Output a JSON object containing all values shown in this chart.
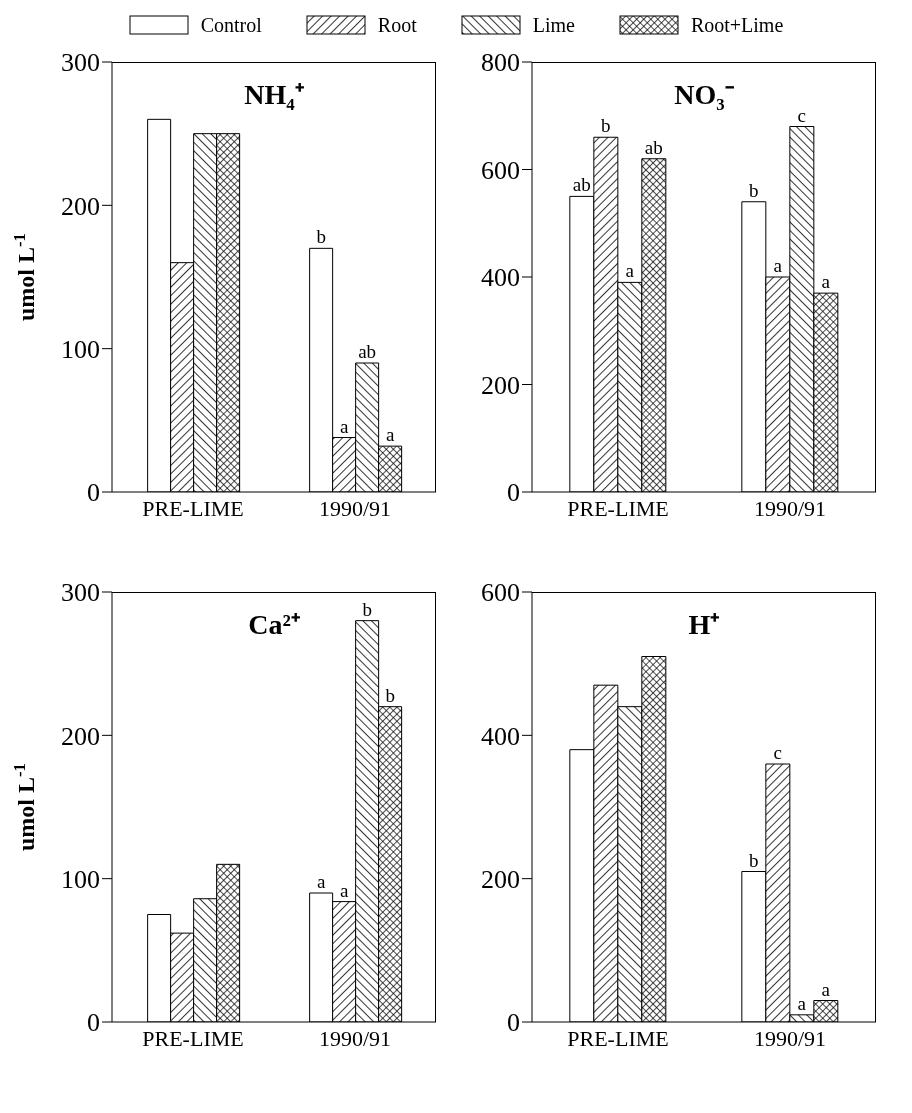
{
  "chart_data": [
    {
      "type": "bar",
      "title": "NH₄⁺",
      "ylabel": "umol L$^{-1}$",
      "categories": [
        "PRE-LIME",
        "1990/91"
      ],
      "ylim": [
        0,
        300
      ],
      "yticks": [
        0,
        100,
        200,
        300
      ],
      "grid": false,
      "legend": "top",
      "series": [
        {
          "name": "Control",
          "color": "#ffffff",
          "values": [
            260,
            170
          ],
          "value_labels": [
            null,
            "b"
          ]
        },
        {
          "name": "Root",
          "color": "#000000",
          "values": [
            160,
            38
          ],
          "value_labels": [
            null,
            "a"
          ]
        },
        {
          "name": "Lime",
          "color": "#000000",
          "values": [
            250,
            90
          ],
          "value_labels": [
            null,
            "ab"
          ]
        },
        {
          "name": "Root+Lime",
          "color": "#000000",
          "values": [
            250,
            32
          ],
          "value_labels": [
            null,
            "a"
          ]
        }
      ]
    },
    {
      "type": "bar",
      "title": "NO₃⁻",
      "categories": [
        "PRE-LIME",
        "1990/91"
      ],
      "ylim": [
        0,
        800
      ],
      "yticks": [
        0,
        200,
        400,
        600,
        800
      ],
      "grid": false,
      "series": [
        {
          "color": "#ffffff",
          "values": [
            550,
            540
          ],
          "value_labels": [
            "ab",
            "b"
          ]
        },
        {
          "color": "#000000",
          "values": [
            660,
            400
          ],
          "value_labels": [
            "b",
            "a"
          ]
        },
        {
          "color": "#000000",
          "values": [
            390,
            680
          ],
          "value_labels": [
            "a",
            "c"
          ]
        },
        {
          "color": "#000000",
          "values": [
            620,
            370
          ],
          "value_labels": [
            "ab",
            "a"
          ]
        }
      ]
    },
    {
      "type": "bar",
      "title": "Ca²⁺",
      "ylabel": "umol L$^{-1}$",
      "categories": [
        "PRE-LIME",
        "1990/91"
      ],
      "ylim": [
        0,
        300
      ],
      "yticks": [
        0,
        100,
        200,
        300
      ],
      "grid": false,
      "series": [
        {
          "color": "#ffffff",
          "values": [
            75,
            90
          ],
          "value_labels": [
            null,
            "a"
          ]
        },
        {
          "color": "#000000",
          "values": [
            62,
            84
          ],
          "value_labels": [
            null,
            "a"
          ]
        },
        {
          "color": "#000000",
          "values": [
            86,
            280
          ],
          "value_labels": [
            null,
            "b"
          ]
        },
        {
          "color": "#000000",
          "values": [
            110,
            220
          ],
          "value_labels": [
            null,
            "b"
          ]
        }
      ]
    },
    {
      "type": "bar",
      "title": "H⁺",
      "categories": [
        "PRE-LIME",
        "1990/91"
      ],
      "ylim": [
        0,
        600
      ],
      "yticks": [
        0,
        200,
        400,
        600
      ],
      "grid": false,
      "series": [
        {
          "color": "#ffffff",
          "values": [
            380,
            210
          ],
          "value_labels": [
            null,
            "b"
          ]
        },
        {
          "color": "#000000",
          "values": [
            470,
            360
          ],
          "value_labels": [
            null,
            "c"
          ]
        },
        {
          "color": "#000000",
          "values": [
            440,
            10
          ],
          "value_labels": [
            null,
            "a"
          ]
        },
        {
          "color": "#000000",
          "values": [
            510,
            30
          ],
          "value_labels": [
            null,
            "a"
          ]
        }
      ]
    }
  ]
}
